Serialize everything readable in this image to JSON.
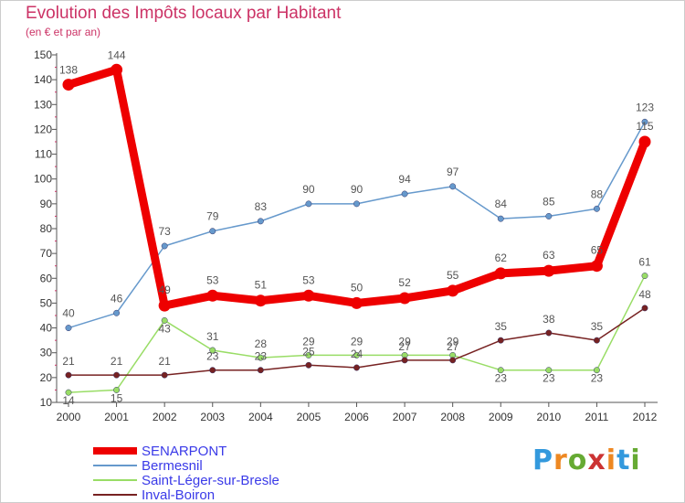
{
  "chart_data": {
    "type": "line",
    "title": "Evolution des Impôts locaux par Habitant",
    "subtitle": "(en € et par an)",
    "categories": [
      "2000",
      "2001",
      "2002",
      "2003",
      "2004",
      "2005",
      "2006",
      "2007",
      "2008",
      "2009",
      "2010",
      "2011",
      "2012"
    ],
    "ylim": [
      10,
      150
    ],
    "yticks": [
      10,
      20,
      30,
      40,
      50,
      60,
      70,
      80,
      90,
      100,
      110,
      120,
      130,
      140,
      150
    ],
    "series": [
      {
        "name": "SENARPONT",
        "color": "#ee0000",
        "values": [
          138,
          144,
          49,
          53,
          51,
          53,
          50,
          52,
          55,
          62,
          63,
          65,
          115
        ]
      },
      {
        "name": "Bermesnil",
        "color": "#6699cc",
        "values": [
          40,
          46,
          73,
          79,
          83,
          90,
          90,
          94,
          97,
          84,
          85,
          88,
          123
        ]
      },
      {
        "name": "Saint-Léger-sur-Bresle",
        "color": "#99dd66",
        "values": [
          14,
          15,
          43,
          31,
          28,
          29,
          29,
          29,
          29,
          23,
          23,
          23,
          61
        ]
      },
      {
        "name": "Inval-Boiron",
        "color": "#772222",
        "values": [
          21,
          21,
          21,
          23,
          23,
          25,
          24,
          27,
          27,
          35,
          38,
          35,
          48
        ]
      }
    ]
  },
  "logo": {
    "text": "Proxiti"
  }
}
